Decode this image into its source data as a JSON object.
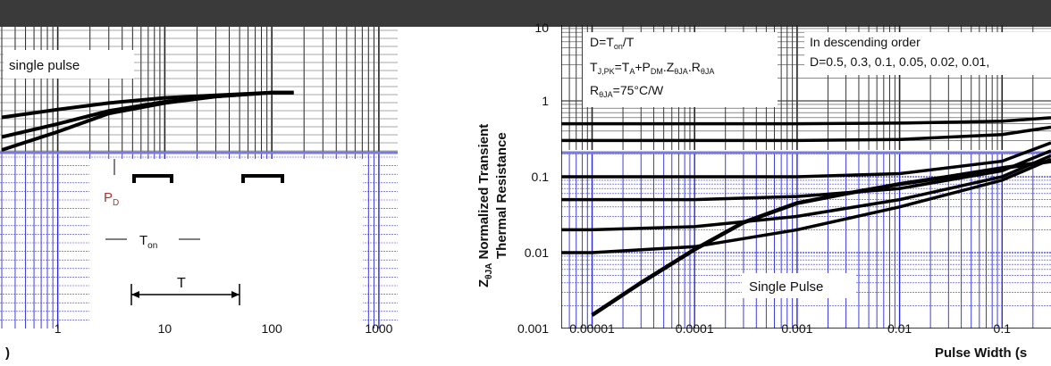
{
  "chart_data": [
    {
      "type": "line",
      "title": "",
      "xlabel": ")",
      "ylabel": "",
      "xscale": "log",
      "xlim": [
        0.3,
        1500
      ],
      "x_ticks": [
        {
          "value": 1,
          "label": "1"
        },
        {
          "value": 10,
          "label": "10"
        },
        {
          "value": 100,
          "label": "100"
        },
        {
          "value": 1000,
          "label": "1000"
        }
      ],
      "legend_text": "single pulse",
      "series": [
        {
          "x": [
            0.3,
            1,
            3,
            10,
            30,
            100,
            160
          ],
          "y": [
            0.55,
            0.61,
            0.66,
            0.7,
            0.72,
            0.74,
            0.74
          ]
        },
        {
          "x": [
            0.3,
            1,
            3,
            10,
            30,
            100,
            160
          ],
          "y": [
            0.4,
            0.5,
            0.6,
            0.67,
            0.71,
            0.74,
            0.74
          ]
        },
        {
          "x": [
            0.3,
            1,
            3,
            10,
            30,
            100,
            160
          ],
          "y": [
            0.3,
            0.44,
            0.58,
            0.66,
            0.71,
            0.74,
            0.74
          ]
        }
      ],
      "grid": true,
      "inset": {
        "pd_label": "P",
        "pd_sub": "D",
        "ton_label": "T",
        "ton_sub": "on",
        "period_label": "T"
      }
    },
    {
      "type": "line",
      "title": "",
      "xlabel": "Pulse Width (s",
      "ylabel_lines": [
        "Z",
        "θJA",
        " Normalized Transient",
        "Thermal Resistance"
      ],
      "xscale": "log",
      "yscale": "log",
      "xlim": [
        5e-06,
        0.3
      ],
      "ylim": [
        0.001,
        10
      ],
      "x_ticks": [
        {
          "value": 1e-05,
          "label": "0.00001"
        },
        {
          "value": 0.0001,
          "label": "0.0001"
        },
        {
          "value": 0.001,
          "label": "0.001"
        },
        {
          "value": 0.01,
          "label": "0.01"
        },
        {
          "value": 0.1,
          "label": "0.1"
        }
      ],
      "y_ticks": [
        {
          "value": 0.001,
          "label": "0.001"
        },
        {
          "value": 0.01,
          "label": "0.01"
        },
        {
          "value": 0.1,
          "label": "0.1"
        },
        {
          "value": 1,
          "label": "1"
        },
        {
          "value": 10,
          "label": "10"
        }
      ],
      "annotation_box": {
        "line1_pre": "D=T",
        "line1_sub": "on",
        "line1_post": "/T",
        "line2_a": "T",
        "line2_a_sub": "J,PK",
        "line2_b": "=T",
        "line2_b_sub": "A",
        "line2_c": "+P",
        "line2_c_sub": "DM",
        "line2_d": ".Z",
        "line2_d_sub": "θJA",
        "line2_e": ".R",
        "line2_e_sub": "θJA",
        "line3_a": "R",
        "line3_a_sub": "θJA",
        "line3_b": "=75°C/W"
      },
      "legend_lines": [
        "In descending order",
        "D=0.5, 0.3, 0.1, 0.05, 0.02, 0.01, "
      ],
      "single_pulse_label": "Single Pulse",
      "series": [
        {
          "name": "0.5",
          "x": [
            5e-06,
            1e-05,
            0.0001,
            0.001,
            0.01,
            0.1,
            0.3
          ],
          "y": [
            0.5,
            0.5,
            0.5,
            0.5,
            0.51,
            0.54,
            0.6
          ]
        },
        {
          "name": "0.3",
          "x": [
            5e-06,
            1e-05,
            0.0001,
            0.001,
            0.01,
            0.1,
            0.3
          ],
          "y": [
            0.3,
            0.3,
            0.3,
            0.3,
            0.31,
            0.36,
            0.45
          ]
        },
        {
          "name": "0.1",
          "x": [
            5e-06,
            1e-05,
            0.0001,
            0.001,
            0.01,
            0.1,
            0.3
          ],
          "y": [
            0.1,
            0.1,
            0.1,
            0.1,
            0.11,
            0.16,
            0.28
          ]
        },
        {
          "name": "0.05",
          "x": [
            5e-06,
            1e-05,
            0.0001,
            0.001,
            0.01,
            0.1,
            0.3
          ],
          "y": [
            0.05,
            0.05,
            0.05,
            0.055,
            0.07,
            0.12,
            0.22
          ]
        },
        {
          "name": "0.02",
          "x": [
            5e-06,
            1e-05,
            0.0001,
            0.001,
            0.01,
            0.1,
            0.3
          ],
          "y": [
            0.02,
            0.02,
            0.022,
            0.03,
            0.05,
            0.1,
            0.19
          ]
        },
        {
          "name": "0.01",
          "x": [
            5e-06,
            1e-05,
            0.0001,
            0.001,
            0.01,
            0.1,
            0.3
          ],
          "y": [
            0.01,
            0.01,
            0.012,
            0.02,
            0.04,
            0.09,
            0.17
          ]
        },
        {
          "name": "Single Pulse",
          "x": [
            1e-05,
            3e-05,
            0.0001,
            0.0003,
            0.001,
            0.003,
            0.01,
            0.03,
            0.1,
            0.3
          ],
          "y": [
            0.0015,
            0.004,
            0.011,
            0.025,
            0.045,
            0.06,
            0.08,
            0.1,
            0.13,
            0.16
          ]
        }
      ],
      "grid": true
    }
  ]
}
